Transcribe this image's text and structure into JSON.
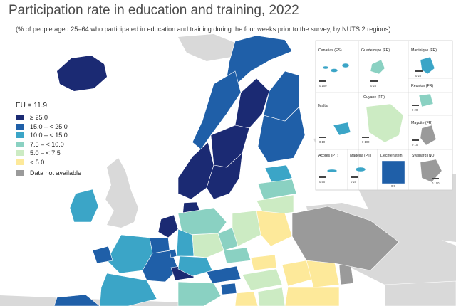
{
  "header": {
    "title": "Participation rate in education and training, 2022",
    "subtitle": "(% of people aged 25–64 who participated in education and training during the four weeks prior to the survey, by NUTS 2 regions)"
  },
  "legend": {
    "eu_label": "EU = 11.9",
    "classes": [
      {
        "label": "≥ 25.0",
        "color": "#1b2a73"
      },
      {
        "label": "15.0 – < 25.0",
        "color": "#1f5fa8"
      },
      {
        "label": "10.0 – < 15.0",
        "color": "#3ba5c7"
      },
      {
        "label": "7.5 – < 10.0",
        "color": "#8ad1c2"
      },
      {
        "label": "5.0 – < 7.5",
        "color": "#ccebc3"
      },
      {
        "label": "< 5.0",
        "color": "#fde99a"
      },
      {
        "label": "Data not available",
        "color": "#9a9a9a"
      }
    ]
  },
  "insets": [
    {
      "name": "Canarias (ES)",
      "scale": "0  100"
    },
    {
      "name": "Guadeloupe (FR)",
      "scale": "0  20"
    },
    {
      "name": "Martinique (FR)",
      "scale": "0  20"
    },
    {
      "name": "Guyane (FR)",
      "scale": "0  100"
    },
    {
      "name": "Réunion (FR)",
      "scale": "0  20"
    },
    {
      "name": "Malta",
      "scale": "0  10"
    },
    {
      "name": "Mayotte (FR)",
      "scale": "0  10"
    },
    {
      "name": "Açores (PT)",
      "scale": "0  50"
    },
    {
      "name": "Madeira (PT)",
      "scale": "0  20"
    },
    {
      "name": "Liechtenstein",
      "scale": "0  5"
    },
    {
      "name": "Svalbard (NO)",
      "scale": "0  100"
    }
  ],
  "colors": {
    "sea": "#ffffff",
    "non_eu_land": "#d9d9d9",
    "border": "#ffffff"
  }
}
